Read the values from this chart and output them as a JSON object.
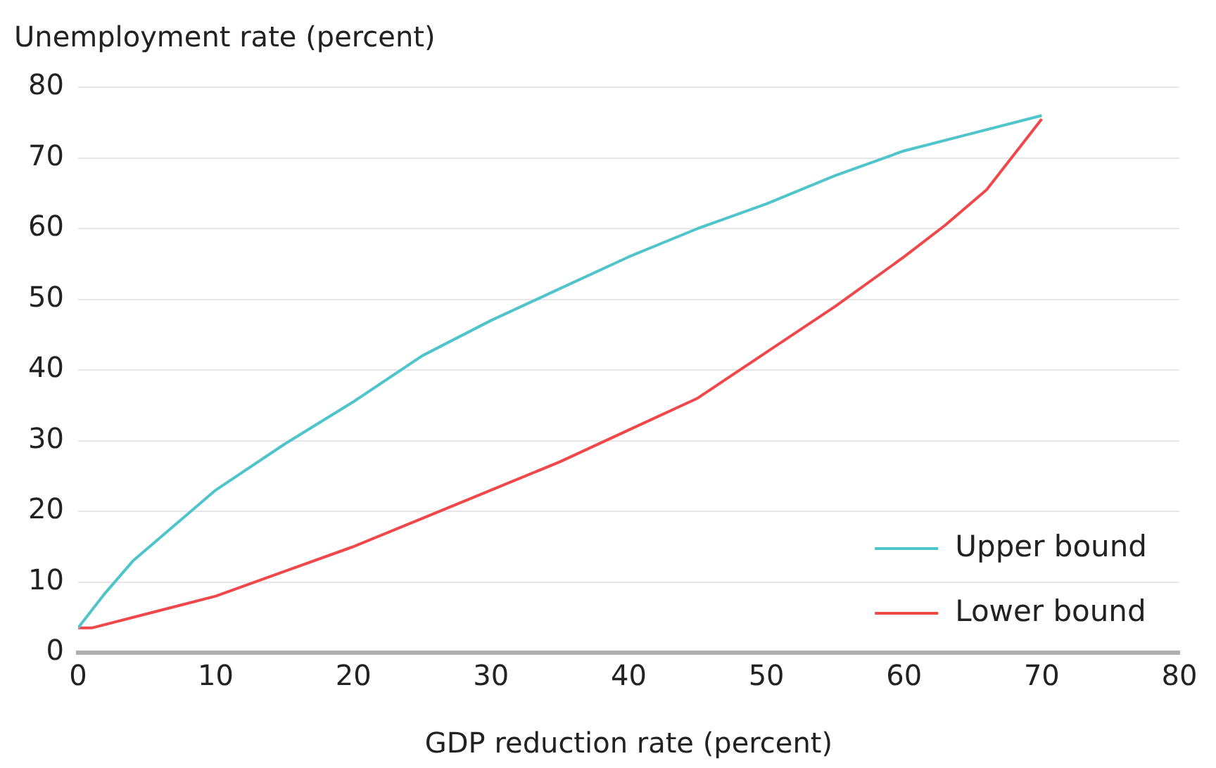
{
  "chart_data": {
    "type": "line",
    "xlabel": "GDP reduction rate (percent)",
    "ylabel": "Unemployment rate (percent)",
    "xlim": [
      0,
      80
    ],
    "xticks": [
      0,
      10,
      20,
      30,
      40,
      50,
      60,
      70,
      80
    ],
    "ylim": [
      0,
      80
    ],
    "yticks": [
      0,
      10,
      20,
      30,
      40,
      50,
      60,
      70,
      80
    ],
    "grid": "y",
    "legend": "bottom right",
    "marker": "none",
    "line_style": "solid",
    "series": [
      {
        "name": "Upper bound",
        "color": "#4fc4cb",
        "x": [
          0,
          2,
          4,
          7,
          10,
          15,
          20,
          25,
          30,
          35,
          40,
          45,
          50,
          55,
          60,
          65,
          70
        ],
        "values": [
          3.5,
          8.5,
          13,
          18,
          23,
          29.5,
          35.5,
          42,
          47,
          51.5,
          56,
          60,
          63.5,
          67.5,
          71,
          73.5,
          76
        ]
      },
      {
        "name": "Lower bound",
        "color": "#f0484a",
        "x": [
          0,
          1,
          5,
          10,
          15,
          20,
          25,
          30,
          35,
          40,
          45,
          50,
          55,
          60,
          63,
          66,
          70
        ],
        "values": [
          3.5,
          3.5,
          5.5,
          8,
          11.5,
          15,
          19,
          23,
          27,
          31.5,
          36,
          42.5,
          49,
          56,
          60.5,
          65.5,
          75.5
        ]
      }
    ]
  }
}
